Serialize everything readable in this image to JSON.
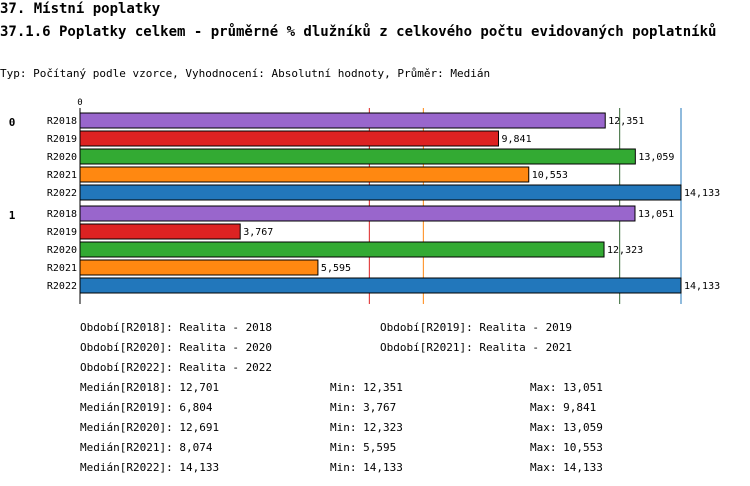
{
  "header": {
    "title": "37. Místní poplatky",
    "subtitle": "37.1.6 Poplatky celkem - průměrné % dlužníků z celkového počtu evidovaných poplatníků",
    "info": "Typ: Počítaný podle vzorce, Vyhodnocení: Absolutní hodnoty, Průměr: Medián"
  },
  "chart_data": {
    "type": "bar",
    "orientation": "horizontal",
    "axis_zero_label": "0",
    "groups": [
      "0",
      "1"
    ],
    "categories": [
      "R2018",
      "R2019",
      "R2020",
      "R2021",
      "R2022"
    ],
    "series": [
      {
        "group": "0",
        "values": [
          12351,
          9841,
          13059,
          10553,
          14133
        ],
        "labels": [
          "12,351",
          "9,841",
          "13,059",
          "10,553",
          "14,133"
        ]
      },
      {
        "group": "1",
        "values": [
          13051,
          3767,
          12323,
          5595,
          14133
        ],
        "labels": [
          "13,051",
          "3,767",
          "12,323",
          "5,595",
          "14,133"
        ]
      }
    ],
    "colors": [
      "#9966cc",
      "#dd2222",
      "#33aa33",
      "#ff8811",
      "#2277bb"
    ],
    "xlim": [
      0,
      14133
    ],
    "reference_lines": [
      {
        "value": 6804,
        "color": "#dd2222"
      },
      {
        "value": 8074,
        "color": "#ff8811"
      },
      {
        "value": 12691,
        "color": "#336633"
      },
      {
        "value": 14133,
        "color": "#2277bb"
      }
    ],
    "grid": false
  },
  "legend": {
    "periods": [
      "Období[R2018]: Realita - 2018",
      "Období[R2019]: Realita - 2019",
      "Období[R2020]: Realita - 2020",
      "Období[R2021]: Realita - 2021",
      "Období[R2022]: Realita - 2022"
    ],
    "stats": [
      {
        "median": "Medián[R2018]: 12,701",
        "min": "Min: 12,351",
        "max": "Max: 13,051"
      },
      {
        "median": "Medián[R2019]: 6,804",
        "min": "Min: 3,767",
        "max": "Max: 9,841"
      },
      {
        "median": "Medián[R2020]: 12,691",
        "min": "Min: 12,323",
        "max": "Max: 13,059"
      },
      {
        "median": "Medián[R2021]: 8,074",
        "min": "Min: 5,595",
        "max": "Max: 10,553"
      },
      {
        "median": "Medián[R2022]: 14,133",
        "min": "Min: 14,133",
        "max": "Max: 14,133"
      }
    ]
  }
}
